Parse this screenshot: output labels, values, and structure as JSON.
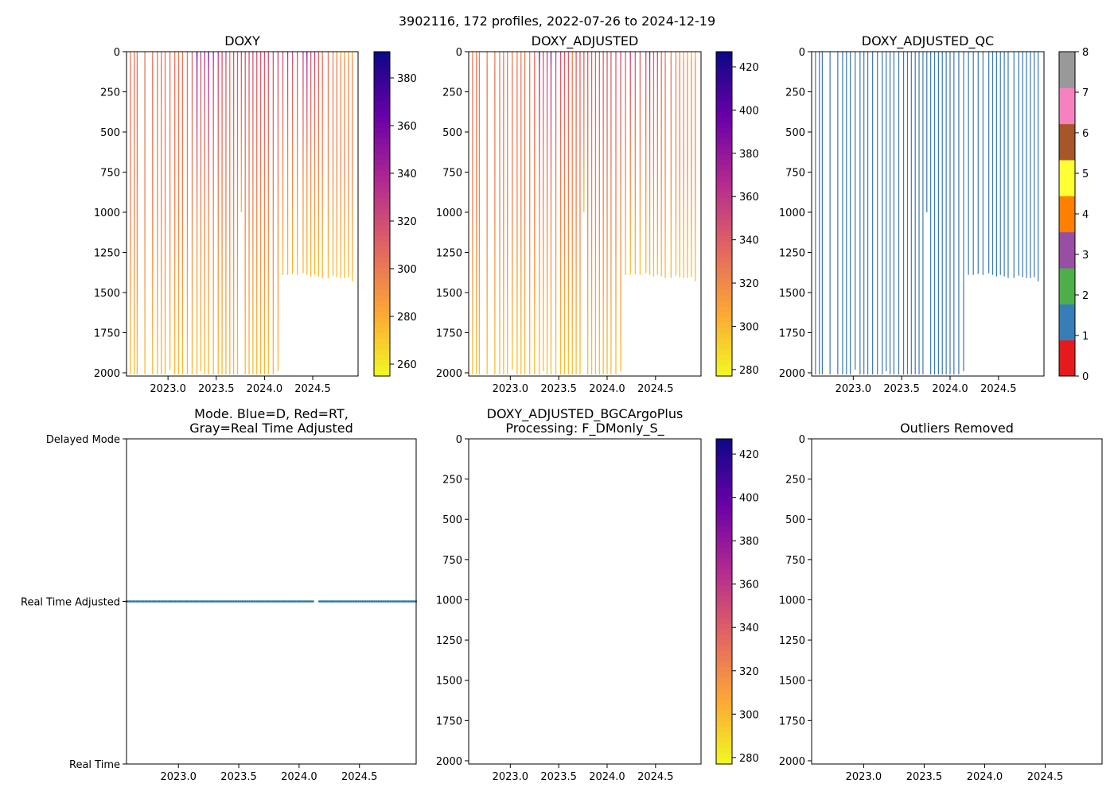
{
  "suptitle": "3902116, 172 profiles, 2022-07-26 to 2024-12-19",
  "colors": {
    "qc_line": "#3a78b0",
    "mode_marker": "#1f6fa6",
    "axis": "#000000"
  },
  "chart_data": [
    {
      "id": "doxy",
      "type": "heatmap",
      "title": "DOXY",
      "xlim": [
        2022.57,
        2024.97
      ],
      "ylim": [
        2020,
        0
      ],
      "x_ticks": [
        2023.0,
        2023.5,
        2024.0,
        2024.5
      ],
      "x_tick_labels": [
        "2023.0",
        "2023.5",
        "2024.0",
        "2024.5"
      ],
      "y_ticks": [
        0,
        250,
        500,
        750,
        1000,
        1250,
        1500,
        1750,
        2000
      ],
      "y_tick_labels": [
        "0",
        "250",
        "500",
        "750",
        "1000",
        "1250",
        "1500",
        "1750",
        "2000"
      ],
      "colormap": "plasma_r",
      "colorbar": {
        "vmin": 255,
        "vmax": 391,
        "ticks": [
          260,
          280,
          300,
          320,
          340,
          360,
          380
        ],
        "tick_labels": [
          "260",
          "280",
          "300",
          "320",
          "340",
          "360",
          "380"
        ]
      }
    },
    {
      "id": "doxy_adj",
      "type": "heatmap",
      "title": "DOXY_ADJUSTED",
      "xlim": [
        2022.57,
        2024.97
      ],
      "ylim": [
        2020,
        0
      ],
      "x_ticks": [
        2023.0,
        2023.5,
        2024.0,
        2024.5
      ],
      "x_tick_labels": [
        "2023.0",
        "2023.5",
        "2024.0",
        "2024.5"
      ],
      "y_ticks": [
        0,
        250,
        500,
        750,
        1000,
        1250,
        1500,
        1750,
        2000
      ],
      "y_tick_labels": [
        "0",
        "250",
        "500",
        "750",
        "1000",
        "1250",
        "1500",
        "1750",
        "2000"
      ],
      "colormap": "plasma_r",
      "colorbar": {
        "vmin": 277,
        "vmax": 427,
        "ticks": [
          280,
          300,
          320,
          340,
          360,
          380,
          400,
          420
        ],
        "tick_labels": [
          "280",
          "300",
          "320",
          "340",
          "360",
          "380",
          "400",
          "420"
        ]
      }
    },
    {
      "id": "doxy_adj_qc",
      "type": "heatmap",
      "title": "DOXY_ADJUSTED_QC",
      "xlim": [
        2022.57,
        2024.97
      ],
      "ylim": [
        2020,
        0
      ],
      "x_ticks": [
        2023.0,
        2023.5,
        2024.0,
        2024.5
      ],
      "x_tick_labels": [
        "2023.0",
        "2023.5",
        "2024.0",
        "2024.5"
      ],
      "y_ticks": [
        0,
        250,
        500,
        750,
        1000,
        1250,
        1500,
        1750,
        2000
      ],
      "y_tick_labels": [
        "0",
        "250",
        "500",
        "750",
        "1000",
        "1250",
        "1500",
        "1750",
        "2000"
      ],
      "colormap": "qc_categorical",
      "qc_value": 1,
      "colorbar": {
        "vmin": 0,
        "vmax": 8,
        "ticks": [
          0,
          1,
          2,
          3,
          4,
          5,
          6,
          7,
          8
        ],
        "tick_labels": [
          "0",
          "1",
          "2",
          "3",
          "4",
          "5",
          "6",
          "7",
          "8"
        ],
        "categories": [
          "#e41a1c",
          "#377eb8",
          "#4daf4a",
          "#984ea3",
          "#ff7f00",
          "#ffff33",
          "#a65628",
          "#f781bf",
          "#999999"
        ]
      }
    },
    {
      "id": "mode",
      "type": "scatter",
      "title": "Mode. Blue=D, Red=RT,\nGray=Real Time Adjusted",
      "xlim": [
        2022.57,
        2024.97
      ],
      "ylim": [
        0,
        2
      ],
      "x_ticks": [
        2023.0,
        2023.5,
        2024.0,
        2024.5
      ],
      "x_tick_labels": [
        "2023.0",
        "2023.5",
        "2024.0",
        "2024.5"
      ],
      "y_ticks": [
        0,
        1,
        2
      ],
      "y_tick_labels": [
        "Real Time",
        "Real Time Adjusted",
        "Delayed Mode"
      ],
      "mode_value": 1
    },
    {
      "id": "bgc_plus",
      "type": "heatmap",
      "title": "DOXY_ADJUSTED_BGCArgoPlus\nProcessing: F_DMonly_S_",
      "xlim": [
        2022.57,
        2024.97
      ],
      "ylim": [
        2020,
        0
      ],
      "x_ticks": [
        2023.0,
        2023.5,
        2024.0,
        2024.5
      ],
      "x_tick_labels": [
        "2023.0",
        "2023.5",
        "2024.0",
        "2024.5"
      ],
      "y_ticks": [
        0,
        250,
        500,
        750,
        1000,
        1250,
        1500,
        1750,
        2000
      ],
      "y_tick_labels": [
        "0",
        "250",
        "500",
        "750",
        "1000",
        "1250",
        "1500",
        "1750",
        "2000"
      ],
      "colormap": "plasma_r",
      "colorbar": {
        "vmin": 277,
        "vmax": 427,
        "ticks": [
          280,
          300,
          320,
          340,
          360,
          380,
          400,
          420
        ],
        "tick_labels": [
          "280",
          "300",
          "320",
          "340",
          "360",
          "380",
          "400",
          "420"
        ]
      }
    },
    {
      "id": "outliers",
      "type": "heatmap",
      "title": "Outliers Removed",
      "xlim": [
        2022.57,
        2024.97
      ],
      "ylim": [
        2020,
        0
      ],
      "x_ticks": [
        2023.0,
        2023.5,
        2024.0,
        2024.5
      ],
      "x_tick_labels": [
        "2023.0",
        "2023.5",
        "2024.0",
        "2024.5"
      ],
      "y_ticks": [
        0,
        250,
        500,
        750,
        1000,
        1250,
        1500,
        1750,
        2000
      ],
      "y_tick_labels": [
        "0",
        "250",
        "500",
        "750",
        "1000",
        "1250",
        "1500",
        "1750",
        "2000"
      ]
    }
  ],
  "profiles": {
    "times": [
      2022.57,
      2022.61,
      2022.65,
      2022.68,
      2022.76,
      2022.84,
      2022.89,
      2022.93,
      2022.97,
      2023.02,
      2023.07,
      2023.11,
      2023.15,
      2023.2,
      2023.25,
      2023.3,
      2023.34,
      2023.38,
      2023.42,
      2023.47,
      2023.52,
      2023.56,
      2023.6,
      2023.64,
      2023.68,
      2023.72,
      2023.76,
      2023.8,
      2023.84,
      2023.88,
      2023.92,
      2023.96,
      2024.0,
      2024.04,
      2024.09,
      2024.14,
      2024.19,
      2024.24,
      2024.29,
      2024.34,
      2024.4,
      2024.44,
      2024.48,
      2024.52,
      2024.56,
      2024.6,
      2024.66,
      2024.71,
      2024.75,
      2024.79,
      2024.83,
      2024.87,
      2024.91
    ],
    "max_depths": [
      2010,
      2010,
      2010,
      2010,
      2010,
      2010,
      2010,
      2010,
      2010,
      1980,
      2010,
      2010,
      2010,
      2010,
      2010,
      2010,
      1990,
      2010,
      2010,
      2010,
      2010,
      2010,
      2010,
      2010,
      2010,
      2010,
      1000,
      2010,
      2010,
      2010,
      2010,
      2010,
      2010,
      2010,
      2010,
      1990,
      1390,
      1390,
      1385,
      1390,
      1380,
      1390,
      1400,
      1390,
      1400,
      1410,
      1410,
      1395,
      1405,
      1410,
      1410,
      1405,
      1430
    ],
    "surface_values_doxy": [
      300,
      300,
      300,
      300,
      300,
      300,
      300,
      300,
      300,
      300,
      300,
      300,
      300,
      300,
      310,
      385,
      330,
      335,
      370,
      340,
      330,
      320,
      320,
      300,
      320,
      320,
      320,
      320,
      320,
      320,
      320,
      320,
      320,
      320,
      320,
      330,
      320,
      340,
      320,
      320,
      330,
      360,
      320,
      330,
      310,
      300,
      300,
      290,
      290,
      280,
      280,
      280,
      280
    ],
    "deep_value_doxy": 275
  },
  "mode_series": {
    "times": [
      2022.57,
      2022.62,
      2022.67,
      2022.72,
      2022.77,
      2022.82,
      2022.87,
      2022.92,
      2022.97,
      2023.02,
      2023.07,
      2023.12,
      2023.17,
      2023.22,
      2023.27,
      2023.32,
      2023.37,
      2023.42,
      2023.47,
      2023.52,
      2023.57,
      2023.62,
      2023.67,
      2023.72,
      2023.77,
      2023.82,
      2023.87,
      2023.92,
      2023.97,
      2024.02,
      2024.07,
      2024.12,
      2024.17,
      2024.22,
      2024.27,
      2024.32,
      2024.37,
      2024.42,
      2024.47,
      2024.52,
      2024.57,
      2024.62,
      2024.67,
      2024.72,
      2024.77,
      2024.82,
      2024.87,
      2024.92,
      2024.97
    ]
  }
}
